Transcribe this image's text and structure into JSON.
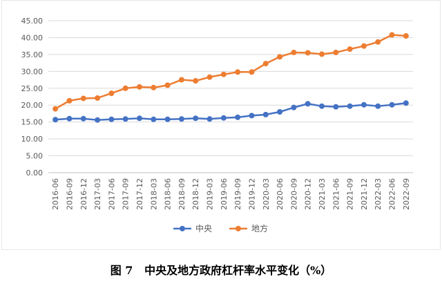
{
  "colors": {
    "central": "#4472c4",
    "local": "#ed7d31",
    "grid": "#d9d9d9",
    "axis": "#bfbfbf"
  },
  "chart_data": {
    "type": "line",
    "categories": [
      "2016-06",
      "2016-09",
      "2016-12",
      "2017-03",
      "2017-06",
      "2017-09",
      "2017-12",
      "2018-03",
      "2018-06",
      "2018-09",
      "2018-12",
      "2019-03",
      "2019-06",
      "2019-09",
      "2019-12",
      "2020-03",
      "2020-06",
      "2020-09",
      "2020-12",
      "2021-03",
      "2021-06",
      "2021-09",
      "2021-12",
      "2022-03",
      "2022-06",
      "2022-09"
    ],
    "series": [
      {
        "name": "中央",
        "color": "#4472c4",
        "values": [
          15.7,
          16.0,
          16.0,
          15.6,
          15.8,
          15.9,
          16.1,
          15.8,
          15.8,
          15.9,
          16.1,
          15.9,
          16.2,
          16.4,
          16.9,
          17.2,
          18.0,
          19.3,
          20.4,
          19.7,
          19.5,
          19.7,
          20.1,
          19.7,
          20.1,
          20.6
        ]
      },
      {
        "name": "地方",
        "color": "#ed7d31",
        "values": [
          18.9,
          21.3,
          22.0,
          22.1,
          23.5,
          25.0,
          25.4,
          25.2,
          25.9,
          27.5,
          27.2,
          28.3,
          29.1,
          29.8,
          29.8,
          32.3,
          34.3,
          35.6,
          35.5,
          35.1,
          35.6,
          36.6,
          37.5,
          38.7,
          40.8,
          40.5
        ]
      }
    ],
    "yticks": [
      "0.00",
      "5.00",
      "10.00",
      "15.00",
      "20.00",
      "25.00",
      "30.00",
      "35.00",
      "40.00",
      "45.00"
    ],
    "ylim": [
      0,
      45
    ],
    "grid": true,
    "legend": "bottom-center",
    "caption": "图 7   中央及地方政府杠杆率水平变化（%）"
  }
}
